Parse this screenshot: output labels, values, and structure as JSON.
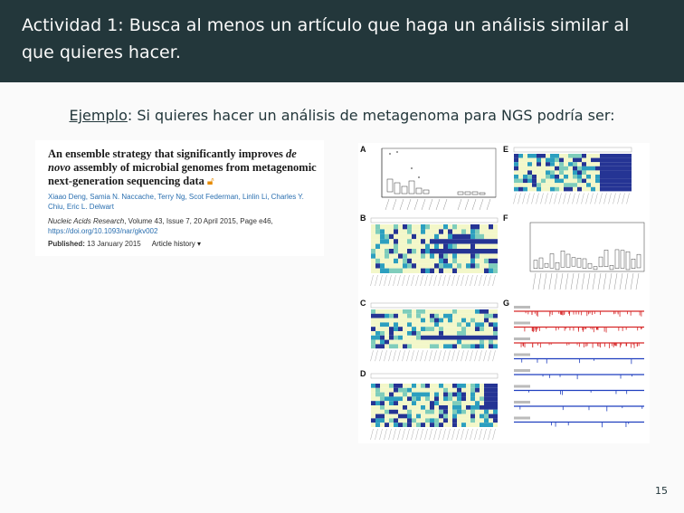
{
  "frame": {
    "title": "Actividad 1: Busca al menos un artículo que haga un análisis similar al que quieres hacer."
  },
  "intro": {
    "keyword": "Ejemplo",
    "text": ": Si quieres hacer un análisis de metagenoma para NGS podría ser:"
  },
  "article": {
    "title_part1": "An ensemble strategy that significantly improves ",
    "title_italic": "de novo",
    "title_part2": " assembly of microbial genomes from metagenomic next-generation sequencing data",
    "authors": "Xiaao Deng, Samia N. Naccache, Terry Ng, Scot Federman, Linlin Li, Charles Y. Chiu, Eric L. Delwart",
    "journal_name": "Nucleic Acids Research",
    "journal_details": ", Volume 43, Issue 7, 20 April 2015, Page e46, ",
    "doi": "https://doi.org/10.1093/nar/gkv002",
    "published_label": "Published:",
    "published_date": "13 January 2015",
    "history_label": "Article history ▾"
  },
  "figure": {
    "panels": [
      "A",
      "B",
      "C",
      "D",
      "E",
      "F",
      "G"
    ]
  },
  "page": {
    "number": "15"
  },
  "colors": {
    "header_bg": "#23373b",
    "header_fg": "#fafafa",
    "body_bg": "#fafafa",
    "heat_light": "#f3f7c9",
    "heat_mid": "#7fcdbb",
    "heat_teal": "#2c9fbf",
    "heat_dark": "#253494"
  }
}
